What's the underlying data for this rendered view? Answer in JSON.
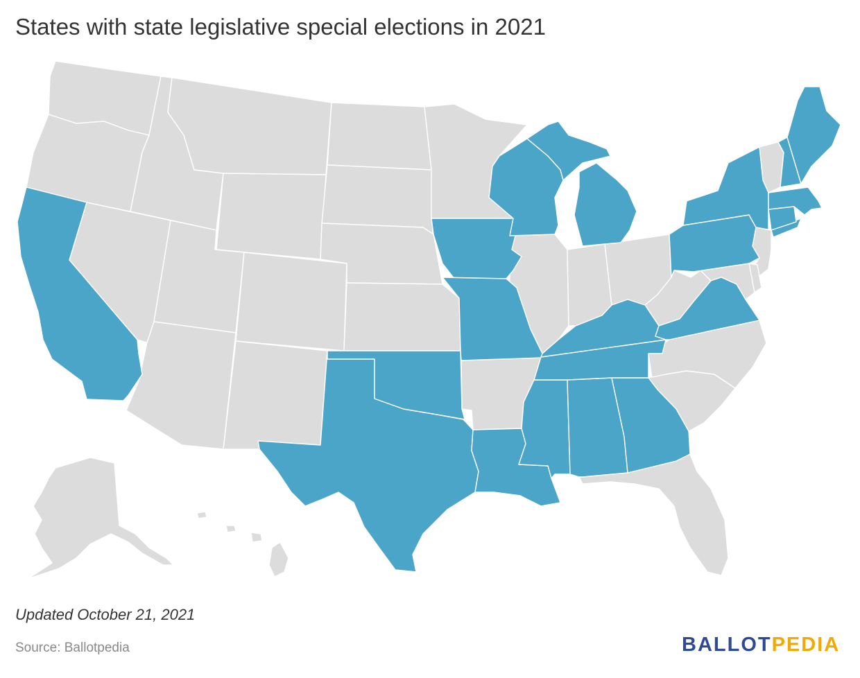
{
  "title": "States with state legislative special elections in 2021",
  "updated": "Updated October 21, 2021",
  "source": "Source: Ballotpedia",
  "logo": {
    "part1": "BALLOT",
    "part2": "PEDIA"
  },
  "colors": {
    "highlight": "#4aa5c9",
    "default": "#dcdcdc",
    "border": "#ffffff"
  },
  "highlighted_states": [
    "California",
    "Texas",
    "Oklahoma",
    "Iowa",
    "Missouri",
    "Louisiana",
    "Mississippi",
    "Alabama",
    "Georgia",
    "Tennessee",
    "Kentucky",
    "Virginia",
    "Pennsylvania",
    "New York",
    "Connecticut",
    "Massachusetts",
    "New Hampshire",
    "Maine",
    "Wisconsin",
    "Michigan"
  ]
}
